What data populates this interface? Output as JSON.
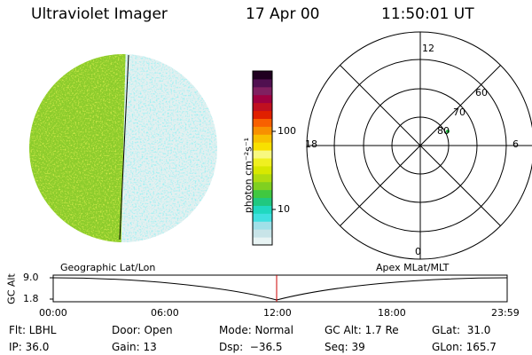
{
  "header": {
    "instrument": "Ultraviolet Imager",
    "date": "17 Apr 00",
    "time": "11:50:01 UT"
  },
  "colorbar": {
    "unit_label": "photon cm⁻²s⁻¹",
    "tick_100": "100",
    "tick_10": "10",
    "colors": [
      "#e8f4f4",
      "#c8e4e8",
      "#a0e0e8",
      "#40e0e0",
      "#20d8c0",
      "#20c880",
      "#40c840",
      "#80d020",
      "#b0dc10",
      "#d8e800",
      "#f0f020",
      "#f8f880",
      "#f8e000",
      "#f8c000",
      "#f89000",
      "#f86000",
      "#e02000",
      "#c01020",
      "#a00040",
      "#802060",
      "#501050",
      "#200020"
    ]
  },
  "polar_plot": {
    "mlt_top": "12",
    "mlt_left": "18",
    "mlt_right": "6",
    "mlt_bottom": "0",
    "lat_60": "60",
    "lat_70": "70",
    "lat_80": "80"
  },
  "panel_labels": {
    "left": "Geographic Lat/Lon",
    "right": "Apex MLat/MLT"
  },
  "altitude_plot": {
    "axis_label": "GC Alt",
    "y_top": "9.0",
    "y_bottom": "1.8",
    "x_ticks": [
      "00:00",
      "06:00",
      "12:00",
      "18:00",
      "23:59"
    ],
    "marker_color": "#cc0000"
  },
  "info": {
    "row1": {
      "flt": "Flt: LBHL",
      "door": "Door: Open",
      "mode": "Mode: Normal",
      "gcalt": "GC Alt: 1.7 Re",
      "glat": "GLat:  31.0"
    },
    "row2": {
      "ip": "IP: 36.0",
      "gain": "Gain: 13",
      "dsp": "Dsp:  −36.5",
      "seq": "Seq: 39",
      "glon": "GLon: 165.7"
    }
  }
}
